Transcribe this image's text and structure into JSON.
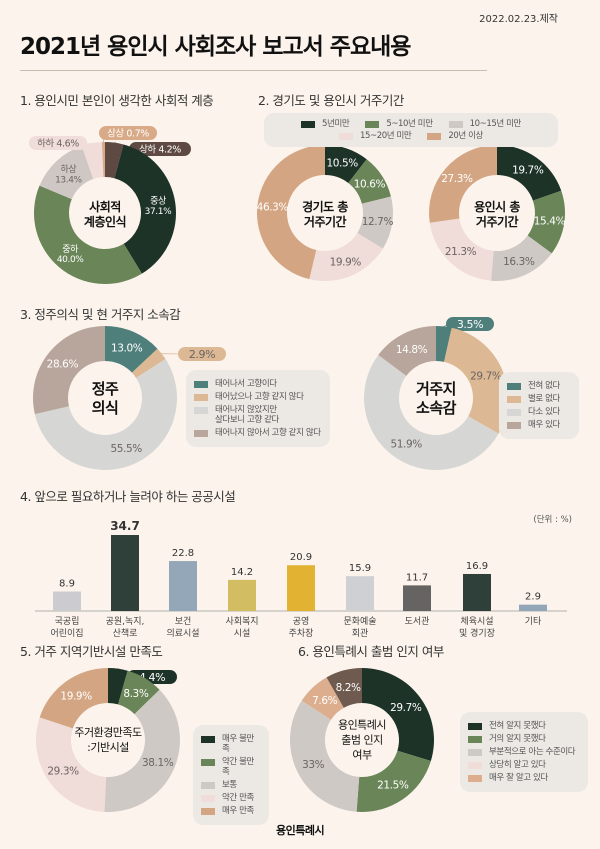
{
  "date": "2022.02.23.제작",
  "title": "2021년 용인시 사회조사 보고서 주요내용",
  "logo_text": "용인특례시",
  "sections": [
    "1. 용인시민 본인이 생각한 사회적 계층",
    "2. 경기도 및 용인시 거주기간",
    "3. 정주의식 및 현 거주지 소속감",
    "4. 앞으로 필요하거나 늘려야 하는 공공시설",
    "5. 거주 지역기반시설 만족도",
    "6. 용인특례시 출범 인지 여부"
  ],
  "chart_data": [
    {
      "type": "pie",
      "center_label": "사회적\n계층인식",
      "categories": [
        "상하",
        "중상",
        "중하",
        "하상",
        "하하",
        "상상"
      ],
      "values": [
        4.2,
        37.1,
        40.0,
        13.4,
        4.6,
        0.7
      ],
      "value_labels": [
        "상하 4.2%",
        "중상\n37.1%",
        "중하\n40.0%",
        "하상\n13.4%",
        "하하 4.6%",
        "상상 0.7%"
      ],
      "colors": [
        "#5e4a42",
        "#1e3328",
        "#6a8558",
        "#cfc7c4",
        "#f0dcd8",
        "#d9aa88"
      ]
    },
    {
      "type": "pie",
      "center_label": "경기도 총\n거주기간",
      "categories": [
        "5년미만",
        "5~10년 미만",
        "10~15년 미만",
        "15~20년 미만",
        "20년 이상"
      ],
      "values": [
        10.5,
        10.6,
        12.7,
        19.9,
        46.3
      ],
      "value_labels": [
        "10.5%",
        "10.6%",
        "12.7%",
        "19.9%",
        "46.3%"
      ],
      "colors": [
        "#1e3328",
        "#6a8558",
        "#cfc9c6",
        "#f0dcd8",
        "#d4a582"
      ]
    },
    {
      "type": "pie",
      "center_label": "용인시 총\n거주기간",
      "categories": [
        "5년미만",
        "5~10년 미만",
        "10~15년 미만",
        "15~20년 미만",
        "20년 이상"
      ],
      "values": [
        19.7,
        15.4,
        16.3,
        21.3,
        27.3
      ],
      "value_labels": [
        "19.7%",
        "15.4%",
        "16.3%",
        "21.3%",
        "27.3%"
      ],
      "colors": [
        "#1e3328",
        "#6a8558",
        "#cfc9c6",
        "#f0dcd8",
        "#d4a582"
      ]
    },
    {
      "type": "pie",
      "center_label": "정주\n의식",
      "categories": [
        "태어나서 고향이다",
        "태어났으나 고향 같지 않다",
        "태어나지 않았지만\n살다보니 고향 같다",
        "태어나지 않아서 고향 같지 않다"
      ],
      "values": [
        13.0,
        2.9,
        55.5,
        28.6
      ],
      "value_labels": [
        "13.0%",
        "2.9%",
        "55.5%",
        "28.6%"
      ],
      "colors": [
        "#4e7f7a",
        "#dcb994",
        "#d6d6d4",
        "#b8a59b"
      ]
    },
    {
      "type": "pie",
      "center_label": "거주지\n소속감",
      "categories": [
        "전혀 없다",
        "별로 없다",
        "다소 있다",
        "매우 있다"
      ],
      "values": [
        3.5,
        29.7,
        51.9,
        14.8
      ],
      "value_labels": [
        "3.5%",
        "29.7%",
        "51.9%",
        "14.8%"
      ],
      "colors": [
        "#4e7f7a",
        "#dcb994",
        "#d6d6d4",
        "#b8a59b"
      ]
    },
    {
      "type": "bar",
      "unit_label": "(단위 : %)",
      "categories": [
        "국공립\n어린이집",
        "공원,녹지,\n산책로",
        "보건\n의료시설",
        "사회복지\n시설",
        "공영\n주차장",
        "문화예술\n회관",
        "도서관",
        "체육시설\n및 경기장",
        "기타"
      ],
      "values": [
        8.9,
        34.7,
        22.8,
        14.2,
        20.9,
        15.9,
        11.7,
        16.9,
        2.9
      ],
      "value_labels": [
        "8.9",
        "34.7",
        "22.8",
        "14.2",
        "20.9",
        "15.9",
        "11.7",
        "16.9",
        "2.9"
      ],
      "colors": [
        "#ccccd0",
        "#2f3f3a",
        "#93a7b8",
        "#d3bd62",
        "#e2b232",
        "#cfd0d4",
        "#666463",
        "#2f3f3a",
        "#93a7b8"
      ]
    },
    {
      "type": "pie",
      "center_label": "주거환경만족도\n:기반시설",
      "categories": [
        "매우 불만족",
        "약간 불만족",
        "보통",
        "약간 만족",
        "매우 만족"
      ],
      "values": [
        4.4,
        8.3,
        38.1,
        29.3,
        19.9
      ],
      "value_labels": [
        "4.4%",
        "8.3%",
        "38.1%",
        "29.3%",
        "19.9%"
      ],
      "colors": [
        "#1e3328",
        "#6a8558",
        "#cfc9c6",
        "#f0dcd8",
        "#d4a582"
      ]
    },
    {
      "type": "pie",
      "center_label": "용인특례시\n출범 인지\n여부",
      "categories": [
        "전혀 알지 못했다",
        "거의 알지 못했다",
        "부분적으로 아는 수준이다",
        "상당히 알고 있다",
        "매우 잘 알고 있다"
      ],
      "values": [
        29.7,
        21.5,
        33,
        7.6,
        8.2
      ],
      "value_labels": [
        "29.7%",
        "21.5%",
        "33%",
        "7.6%",
        "8.2%"
      ],
      "colors": [
        "#1e3328",
        "#6a8558",
        "#cfc9c6",
        "#dcae8e",
        "#6e5a4f"
      ],
      "legend_colors": [
        "#1e3328",
        "#6a8558",
        "#cfc9c6",
        "#f0dcd8",
        "#dcae8e"
      ]
    }
  ]
}
